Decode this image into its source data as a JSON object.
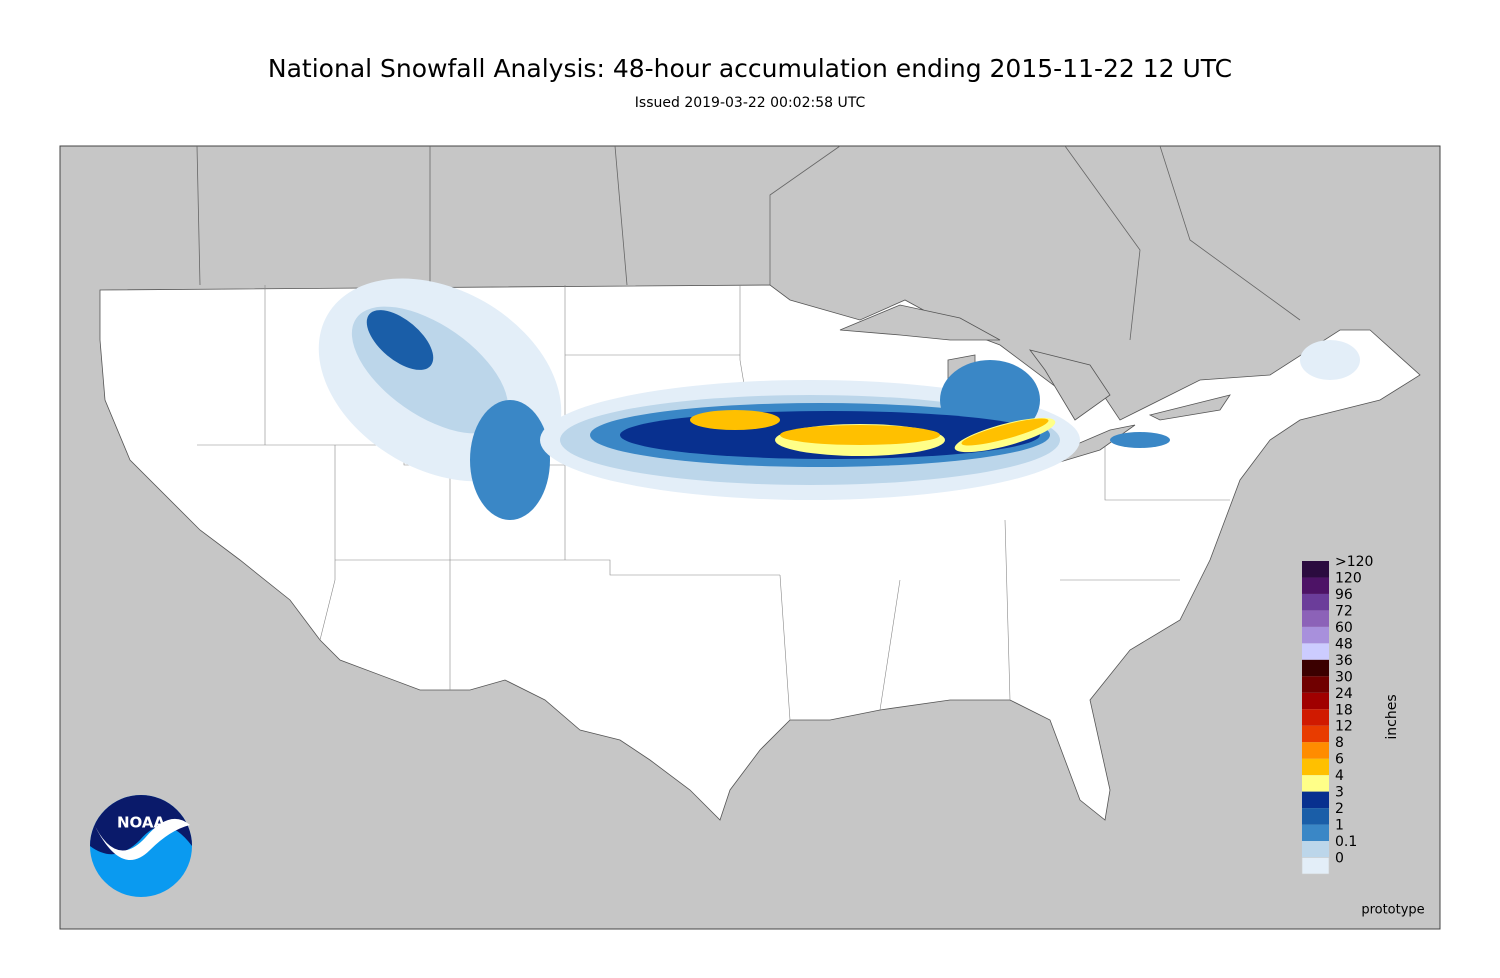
{
  "header": {
    "title": "National Snowfall Analysis: 48-hour accumulation ending 2015-11-22 12 UTC",
    "subtitle": "Issued 2019-03-22 00:02:58 UTC"
  },
  "legend": {
    "title": "inches",
    "labels": [
      ">120",
      "120",
      "96",
      "72",
      "60",
      "48",
      "36",
      "30",
      "24",
      "18",
      "12",
      "8",
      "6",
      "4",
      "3",
      "2",
      "1",
      "0.1",
      "0"
    ],
    "colors": [
      "#2b0b3f",
      "#4d1366",
      "#6b3d9a",
      "#8c62b8",
      "#a890dc",
      "#ccccff",
      "#3b0000",
      "#700000",
      "#a00000",
      "#d01a00",
      "#e83c00",
      "#ff8c00",
      "#ffc000",
      "#ffff88",
      "#08308f",
      "#1a5ea8",
      "#3a87c6",
      "#bcd6ea",
      "#e3eef8"
    ]
  },
  "logo": {
    "text": "NOAA"
  },
  "footer": {
    "note": "prototype"
  }
}
